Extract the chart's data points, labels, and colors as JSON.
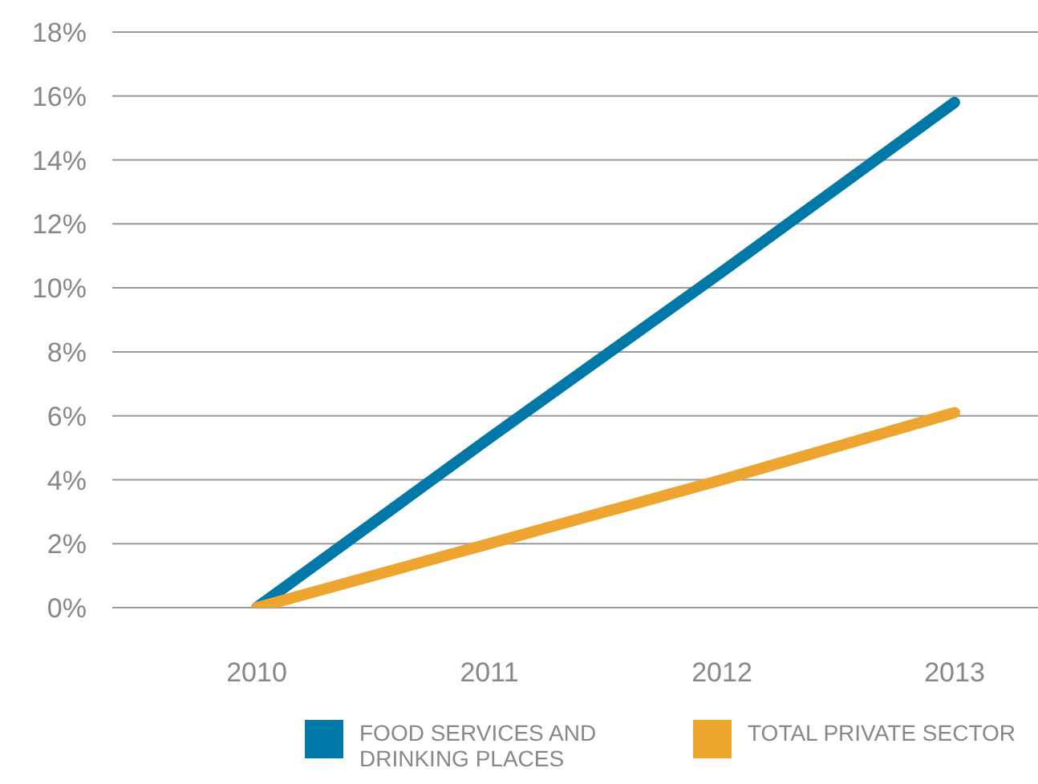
{
  "chart_data": {
    "type": "line",
    "categories": [
      "2010",
      "2011",
      "2012",
      "2013"
    ],
    "series": [
      {
        "name": "FOOD SERVICES AND DRINKING PLACES",
        "color": "#0079a8",
        "values": [
          0,
          5.3,
          10.5,
          15.8
        ]
      },
      {
        "name": "TOTAL PRIVATE SECTOR",
        "color": "#eda52f",
        "values": [
          0,
          2.0,
          4.0,
          6.1
        ]
      }
    ],
    "ylim": [
      0,
      18
    ],
    "yticks": [
      {
        "value": 0,
        "label": "0%"
      },
      {
        "value": 2,
        "label": "2%"
      },
      {
        "value": 4,
        "label": "4%"
      },
      {
        "value": 6,
        "label": "6%"
      },
      {
        "value": 8,
        "label": "8%"
      },
      {
        "value": 10,
        "label": "10%"
      },
      {
        "value": 12,
        "label": "12%"
      },
      {
        "value": 14,
        "label": "14%"
      },
      {
        "value": 16,
        "label": "16%"
      },
      {
        "value": 18,
        "label": "18%"
      }
    ],
    "grid": "y",
    "legend": "bottom",
    "marker": "none",
    "line_style": "solid"
  }
}
